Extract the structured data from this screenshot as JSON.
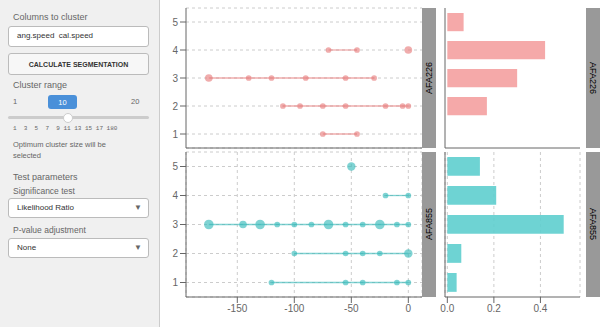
{
  "chart_data": [
    {
      "type": "scatter",
      "title": "AFA226",
      "color": "#e88080",
      "x": [
        -175,
        -140,
        -120,
        -90,
        -55,
        -30,
        -110,
        -95,
        -75,
        -55,
        -20,
        -5,
        0,
        -70,
        -45,
        0,
        -75,
        -45
      ],
      "y": [
        3,
        3,
        3,
        3,
        3,
        3,
        2,
        2,
        2,
        2,
        2,
        2,
        2,
        4,
        4,
        4,
        1,
        1
      ],
      "size": [
        18,
        10,
        10,
        10,
        10,
        10,
        10,
        10,
        10,
        10,
        10,
        10,
        10,
        10,
        10,
        18,
        10,
        10
      ],
      "segments": {
        "y": [
          3,
          2,
          4,
          4,
          1
        ],
        "x1": [
          -175,
          -110,
          -70,
          0,
          -75
        ],
        "x2": [
          -30,
          0,
          -45,
          0,
          -45
        ]
      },
      "xlim": [
        -195,
        12
      ],
      "ylim": [
        0.5,
        5.5
      ],
      "xticks": [],
      "yticks": [
        1,
        2,
        3,
        4,
        5
      ],
      "grid": true,
      "tick_labels": "y",
      "annotations": [
        "Columns to cluster",
        "ang.speed  cal.speed",
        "CALCULATE SEGMENTATION",
        "Cluster range",
        "1",
        "10",
        "20",
        "1  3  5  7  9 11 13 15 17 180",
        "Optimum cluster size will be\nselected",
        "Test parameters",
        "Significance test",
        "Likelihood Ratio",
        "▼",
        "P-value adjustment",
        "None",
        "▼"
      ]
    },
    {
      "type": "bar",
      "title": "AFA226",
      "color": "#f4a0a0",
      "orientation": "horizontal",
      "y": [
        1,
        2,
        3,
        4
      ],
      "values": [
        0.07,
        0.42,
        0.3,
        0.17
      ],
      "xlim": [
        -0.01,
        0.57
      ],
      "ylim": [
        0.5,
        5.5
      ],
      "xticks": [],
      "yticks": [],
      "grid": true,
      "tick_labels": false
    },
    {
      "type": "scatter",
      "title": "AFA855",
      "color": "#3bbcbc",
      "x": [
        -175,
        -145,
        -130,
        -115,
        -100,
        -85,
        -70,
        -55,
        -40,
        -25,
        -10,
        0,
        -100,
        -55,
        -40,
        -25,
        0,
        -20,
        0,
        -120,
        -55,
        -40,
        -10,
        0,
        -50
      ],
      "y": [
        3,
        3,
        3,
        3,
        3,
        3,
        3,
        3,
        3,
        3,
        3,
        3,
        2,
        2,
        2,
        2,
        2,
        4,
        4,
        1,
        1,
        1,
        1,
        1,
        5
      ],
      "size": [
        28,
        18,
        28,
        10,
        10,
        10,
        28,
        10,
        10,
        28,
        10,
        10,
        10,
        10,
        10,
        10,
        22,
        10,
        10,
        10,
        10,
        10,
        10,
        10,
        22
      ],
      "segments": {
        "y": [
          3,
          2,
          4,
          1
        ],
        "x1": [
          -175,
          -100,
          -20,
          -120
        ],
        "x2": [
          0,
          0,
          0,
          0
        ]
      },
      "xlim": [
        -195,
        12
      ],
      "ylim": [
        0.5,
        5.5
      ],
      "xticks": [
        -150,
        -100,
        -50,
        0
      ],
      "yticks": [
        1,
        2,
        3,
        4,
        5
      ],
      "grid": true
    },
    {
      "type": "bar",
      "title": "AFA855",
      "color": "#5ecece",
      "orientation": "horizontal",
      "y": [
        1,
        2,
        3,
        4,
        5
      ],
      "values": [
        0.14,
        0.21,
        0.5,
        0.06,
        0.04
      ],
      "xlim": [
        -0.01,
        0.57
      ],
      "ylim": [
        0.5,
        5.5
      ],
      "xticks": [
        {
          "value": 0,
          "label": "0.0"
        },
        0.2,
        0.4
      ],
      "yticks": [],
      "grid": true,
      "tick_labels": "x"
    }
  ]
}
